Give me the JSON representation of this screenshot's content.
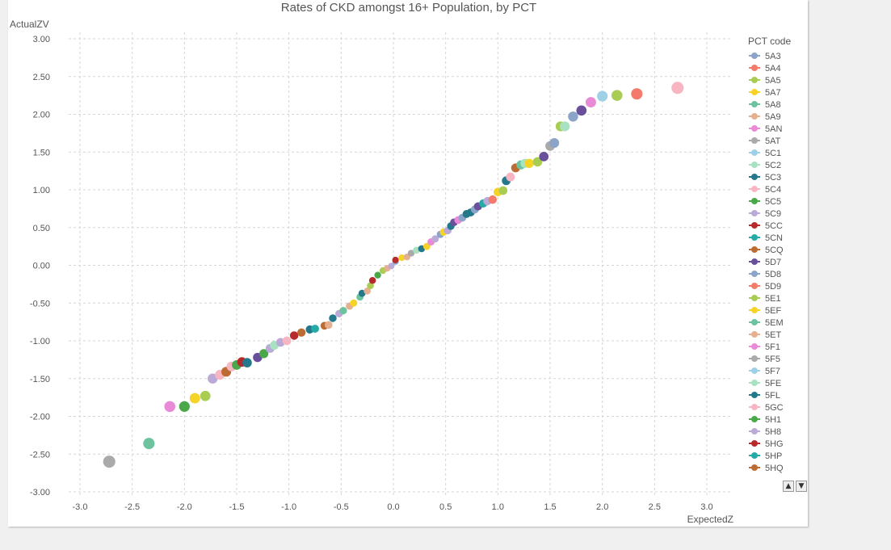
{
  "chart_data": {
    "type": "scatter",
    "title": "Rates of CKD amongst 16+ Population, by PCT",
    "xlabel": "ExpectedZ",
    "ylabel": "ActualZV",
    "xlim": [
      -3.0,
      3.0
    ],
    "ylim": [
      -3.0,
      3.0
    ],
    "x_ticks": [
      "-3.0",
      "-2.5",
      "-2.0",
      "-1.5",
      "-1.0",
      "-0.5",
      "0.0",
      "0.5",
      "1.0",
      "1.5",
      "2.0",
      "2.5",
      "3.0"
    ],
    "y_ticks": [
      "3.00",
      "2.50",
      "2.00",
      "1.50",
      "1.00",
      "0.50",
      "0.00",
      "-0.50",
      "-1.00",
      "-1.50",
      "-2.00",
      "-2.50",
      "-3.00"
    ],
    "grid": true,
    "legend_title": "PCT code",
    "legend_position": "right",
    "legend_entries": [
      "5A3",
      "5A4",
      "5A5",
      "5A7",
      "5A8",
      "5A9",
      "5AN",
      "5AT",
      "5C1",
      "5C2",
      "5C3",
      "5C4",
      "5C5",
      "5C9",
      "5CC",
      "5CN",
      "5CQ",
      "5D7",
      "5D8",
      "5D9",
      "5E1",
      "5EF",
      "5EM",
      "5ET",
      "5F1",
      "5F5",
      "5F7",
      "5FE",
      "5FL",
      "5GC",
      "5H1",
      "5H8",
      "5HG",
      "5HP",
      "5HQ"
    ],
    "palette": [
      "#8ba4c8",
      "#f47a6b",
      "#a9cc52",
      "#f5d327",
      "#6cc39d",
      "#e4b08f",
      "#e88ad6",
      "#aaaaaa",
      "#9fd0e6",
      "#a8e2c0",
      "#23788c",
      "#f7b6c2",
      "#4aa84a",
      "#bba9d8",
      "#b8292b",
      "#26aaa7",
      "#bc6b33",
      "#6a4f9a"
    ],
    "points": [
      {
        "x": -2.72,
        "y": -2.6,
        "c": 7
      },
      {
        "x": -2.34,
        "y": -2.36,
        "c": 4
      },
      {
        "x": -2.14,
        "y": -1.87,
        "c": 6
      },
      {
        "x": -2.0,
        "y": -1.87,
        "c": 12
      },
      {
        "x": -1.9,
        "y": -1.76,
        "c": 3
      },
      {
        "x": -1.8,
        "y": -1.73,
        "c": 2
      },
      {
        "x": -1.73,
        "y": -1.5,
        "c": 13
      },
      {
        "x": -1.66,
        "y": -1.45,
        "c": 11
      },
      {
        "x": -1.6,
        "y": -1.41,
        "c": 16
      },
      {
        "x": -1.55,
        "y": -1.34,
        "c": 11
      },
      {
        "x": -1.5,
        "y": -1.32,
        "c": 12
      },
      {
        "x": -1.45,
        "y": -1.28,
        "c": 14
      },
      {
        "x": -1.4,
        "y": -1.29,
        "c": 10
      },
      {
        "x": -1.3,
        "y": -1.22,
        "c": 17
      },
      {
        "x": -1.24,
        "y": -1.17,
        "c": 12
      },
      {
        "x": -1.18,
        "y": -1.1,
        "c": 13
      },
      {
        "x": -1.14,
        "y": -1.06,
        "c": 9
      },
      {
        "x": -1.08,
        "y": -1.02,
        "c": 13
      },
      {
        "x": -1.02,
        "y": -1.0,
        "c": 11
      },
      {
        "x": -0.95,
        "y": -0.93,
        "c": 14
      },
      {
        "x": -0.88,
        "y": -0.89,
        "c": 16
      },
      {
        "x": -0.8,
        "y": -0.85,
        "c": 10
      },
      {
        "x": -0.75,
        "y": -0.84,
        "c": 15
      },
      {
        "x": -0.66,
        "y": -0.8,
        "c": 16
      },
      {
        "x": -0.62,
        "y": -0.79,
        "c": 5
      },
      {
        "x": -0.58,
        "y": -0.7,
        "c": 10
      },
      {
        "x": -0.52,
        "y": -0.64,
        "c": 13
      },
      {
        "x": -0.48,
        "y": -0.6,
        "c": 4
      },
      {
        "x": -0.42,
        "y": -0.54,
        "c": 5
      },
      {
        "x": -0.38,
        "y": -0.5,
        "c": 3
      },
      {
        "x": -0.32,
        "y": -0.42,
        "c": 4
      },
      {
        "x": -0.3,
        "y": -0.37,
        "c": 10
      },
      {
        "x": -0.25,
        "y": -0.34,
        "c": 5
      },
      {
        "x": -0.22,
        "y": -0.27,
        "c": 2
      },
      {
        "x": -0.2,
        "y": -0.2,
        "c": 14
      },
      {
        "x": -0.15,
        "y": -0.13,
        "c": 12
      },
      {
        "x": -0.1,
        "y": -0.07,
        "c": 2
      },
      {
        "x": -0.06,
        "y": -0.04,
        "c": 5
      },
      {
        "x": -0.02,
        "y": -0.01,
        "c": 13
      },
      {
        "x": 0.02,
        "y": 0.05,
        "c": 0
      },
      {
        "x": 0.02,
        "y": 0.07,
        "c": 14
      },
      {
        "x": 0.08,
        "y": 0.1,
        "c": 3
      },
      {
        "x": 0.13,
        "y": 0.11,
        "c": 5
      },
      {
        "x": 0.17,
        "y": 0.16,
        "c": 7
      },
      {
        "x": 0.22,
        "y": 0.2,
        "c": 9
      },
      {
        "x": 0.27,
        "y": 0.22,
        "c": 10
      },
      {
        "x": 0.32,
        "y": 0.25,
        "c": 3
      },
      {
        "x": 0.36,
        "y": 0.31,
        "c": 6
      },
      {
        "x": 0.4,
        "y": 0.35,
        "c": 13
      },
      {
        "x": 0.45,
        "y": 0.41,
        "c": 0
      },
      {
        "x": 0.48,
        "y": 0.44,
        "c": 3
      },
      {
        "x": 0.52,
        "y": 0.46,
        "c": 13
      },
      {
        "x": 0.55,
        "y": 0.52,
        "c": 10
      },
      {
        "x": 0.58,
        "y": 0.57,
        "c": 17
      },
      {
        "x": 0.62,
        "y": 0.6,
        "c": 6
      },
      {
        "x": 0.66,
        "y": 0.63,
        "c": 0
      },
      {
        "x": 0.7,
        "y": 0.68,
        "c": 10
      },
      {
        "x": 0.74,
        "y": 0.7,
        "c": 10
      },
      {
        "x": 0.78,
        "y": 0.74,
        "c": 0
      },
      {
        "x": 0.81,
        "y": 0.78,
        "c": 17
      },
      {
        "x": 0.86,
        "y": 0.82,
        "c": 15
      },
      {
        "x": 0.9,
        "y": 0.85,
        "c": 13
      },
      {
        "x": 0.95,
        "y": 0.87,
        "c": 1
      },
      {
        "x": 1.0,
        "y": 0.97,
        "c": 3
      },
      {
        "x": 1.05,
        "y": 0.99,
        "c": 2
      },
      {
        "x": 1.08,
        "y": 1.12,
        "c": 10
      },
      {
        "x": 1.12,
        "y": 1.17,
        "c": 11
      },
      {
        "x": 1.17,
        "y": 1.29,
        "c": 16
      },
      {
        "x": 1.22,
        "y": 1.33,
        "c": 4
      },
      {
        "x": 1.26,
        "y": 1.35,
        "c": 9
      },
      {
        "x": 1.3,
        "y": 1.35,
        "c": 3
      },
      {
        "x": 1.38,
        "y": 1.37,
        "c": 2
      },
      {
        "x": 1.44,
        "y": 1.44,
        "c": 17
      },
      {
        "x": 1.5,
        "y": 1.58,
        "c": 7
      },
      {
        "x": 1.54,
        "y": 1.62,
        "c": 0
      },
      {
        "x": 1.6,
        "y": 1.84,
        "c": 2
      },
      {
        "x": 1.64,
        "y": 1.84,
        "c": 9
      },
      {
        "x": 1.72,
        "y": 1.97,
        "c": 0
      },
      {
        "x": 1.8,
        "y": 2.05,
        "c": 17
      },
      {
        "x": 1.89,
        "y": 2.16,
        "c": 6
      },
      {
        "x": 2.0,
        "y": 2.24,
        "c": 8
      },
      {
        "x": 2.14,
        "y": 2.25,
        "c": 2
      },
      {
        "x": 2.33,
        "y": 2.27,
        "c": 1
      },
      {
        "x": 2.72,
        "y": 2.35,
        "c": 11
      }
    ]
  },
  "controls": {
    "scroll_up": "▲",
    "scroll_down": "▼"
  }
}
